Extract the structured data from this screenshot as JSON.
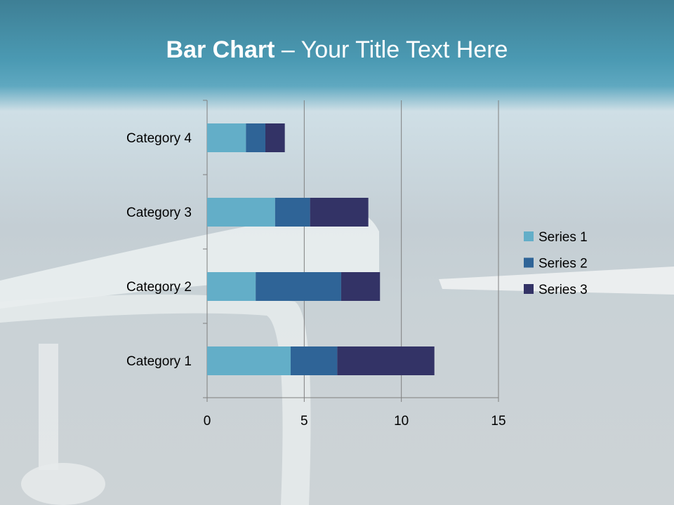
{
  "slide": {
    "title_bold": "Bar Chart",
    "title_rest": " – Your Title Text Here"
  },
  "chart_data": {
    "type": "bar",
    "orientation": "horizontal",
    "stacked": true,
    "categories": [
      "Category 1",
      "Category 2",
      "Category 3",
      "Category 4"
    ],
    "series": [
      {
        "name": "Series 1",
        "values": [
          4.3,
          2.5,
          3.5,
          2
        ],
        "color": "#63aec8"
      },
      {
        "name": "Series 2",
        "values": [
          2.4,
          4.4,
          1.8,
          1
        ],
        "color": "#2f6497"
      },
      {
        "name": "Series 3",
        "values": [
          5,
          2,
          3,
          1
        ],
        "color": "#333366"
      }
    ],
    "xlim": [
      0,
      15
    ],
    "xticks": [
      0,
      5,
      10,
      15
    ],
    "xtick_labels": [
      "0",
      "5",
      "10",
      "15"
    ],
    "grid": true,
    "legend": "right"
  }
}
